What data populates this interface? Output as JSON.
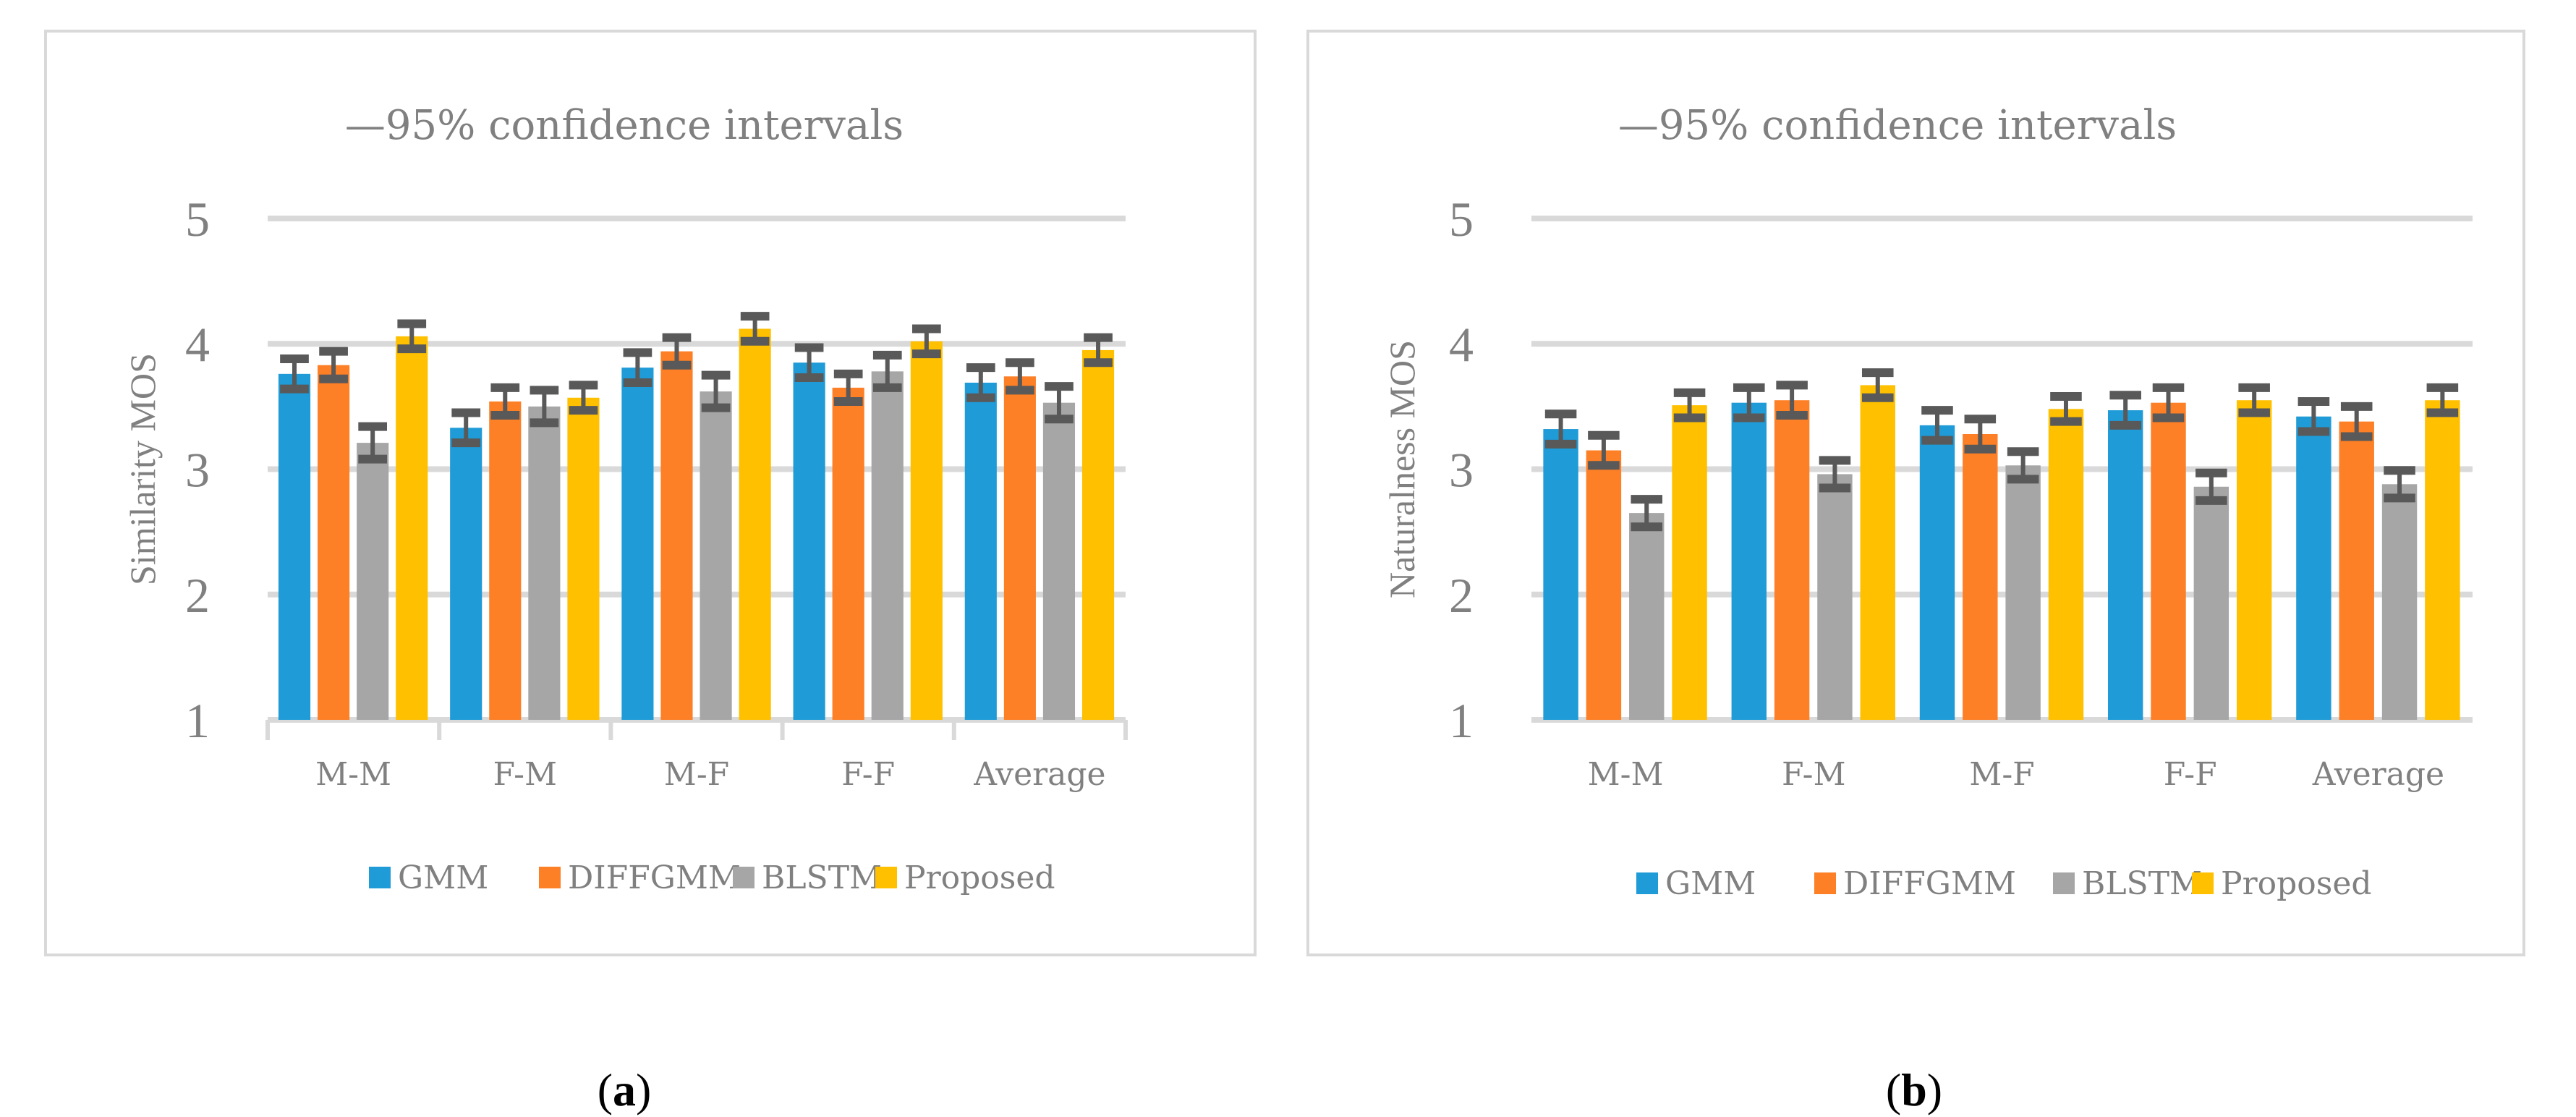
{
  "chart_data": [
    {
      "id": "a",
      "type": "bar",
      "title": "—95% confidence intervals",
      "xlabel": "",
      "ylabel": "Similarity  MOS",
      "ylim": [
        1,
        5
      ],
      "yticks": [
        "1",
        "2",
        "3",
        "4",
        "5"
      ],
      "grid": true,
      "legend_position": "bottom",
      "categories": [
        "M-M",
        "F-M",
        "M-F",
        "F-F",
        "Average"
      ],
      "series": [
        {
          "name": "GMM",
          "color": "#1f9bd7",
          "values": [
            3.76,
            3.33,
            3.81,
            3.85,
            3.69
          ],
          "ci": [
            0.12,
            0.12,
            0.12,
            0.12,
            0.12
          ]
        },
        {
          "name": "DIFFGMM",
          "color": "#fd7f26",
          "values": [
            3.83,
            3.54,
            3.94,
            3.65,
            3.74
          ],
          "ci": [
            0.11,
            0.11,
            0.11,
            0.11,
            0.11
          ]
        },
        {
          "name": "BLSTM",
          "color": "#a6a6a6",
          "values": [
            3.21,
            3.5,
            3.62,
            3.78,
            3.53
          ],
          "ci": [
            0.13,
            0.13,
            0.13,
            0.13,
            0.13
          ]
        },
        {
          "name": "Proposed",
          "color": "#ffc000",
          "values": [
            4.06,
            3.57,
            4.12,
            4.02,
            3.95
          ],
          "ci": [
            0.1,
            0.1,
            0.1,
            0.1,
            0.1
          ]
        }
      ]
    },
    {
      "id": "b",
      "type": "bar",
      "title": "—95% confidence intervals",
      "xlabel": "",
      "ylabel": "Naturalness MOS",
      "ylim": [
        1,
        5
      ],
      "yticks": [
        "1",
        "2",
        "3",
        "4",
        "5"
      ],
      "grid": true,
      "legend_position": "bottom",
      "categories": [
        "M-M",
        "F-M",
        "M-F",
        "F-F",
        "Average"
      ],
      "series": [
        {
          "name": "GMM",
          "color": "#1f9bd7",
          "values": [
            3.32,
            3.53,
            3.35,
            3.47,
            3.42
          ],
          "ci": [
            0.12,
            0.12,
            0.12,
            0.12,
            0.12
          ]
        },
        {
          "name": "DIFFGMM",
          "color": "#fd7f26",
          "values": [
            3.15,
            3.55,
            3.28,
            3.53,
            3.38
          ],
          "ci": [
            0.12,
            0.12,
            0.12,
            0.12,
            0.12
          ]
        },
        {
          "name": "BLSTM",
          "color": "#a6a6a6",
          "values": [
            2.65,
            2.96,
            3.03,
            2.86,
            2.88
          ],
          "ci": [
            0.11,
            0.11,
            0.11,
            0.11,
            0.11
          ]
        },
        {
          "name": "Proposed",
          "color": "#ffc000",
          "values": [
            3.51,
            3.67,
            3.48,
            3.55,
            3.55
          ],
          "ci": [
            0.1,
            0.1,
            0.1,
            0.1,
            0.1
          ]
        }
      ]
    }
  ],
  "captions": {
    "a": "a",
    "b": "b"
  }
}
